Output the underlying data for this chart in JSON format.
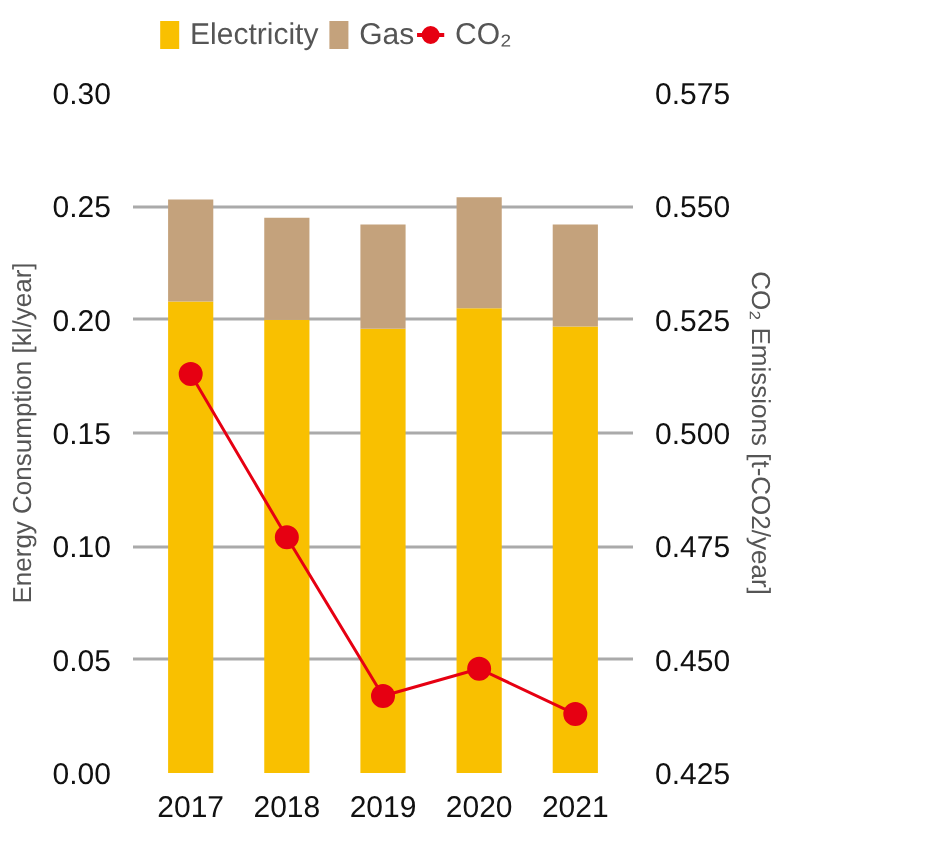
{
  "chart_data": {
    "type": "bar",
    "stacked": true,
    "categories": [
      "2017",
      "2018",
      "2019",
      "2020",
      "2021"
    ],
    "series": [
      {
        "name": "Electricity",
        "color": "#f9c000",
        "values": [
          0.208,
          0.2,
          0.196,
          0.205,
          0.197
        ]
      },
      {
        "name": "Gas",
        "color": "#c4a27c",
        "values": [
          0.045,
          0.045,
          0.046,
          0.049,
          0.045
        ]
      },
      {
        "name": "CO₂",
        "type": "line",
        "axis": "y2",
        "color": "#e60012",
        "marker": "circle",
        "values": [
          0.513,
          0.477,
          0.442,
          0.448,
          0.438
        ]
      }
    ],
    "ylabel": "Energy Consumption [kl/year]",
    "y2label": "CO₂ Emissions [t-CO2/year]",
    "ylim": [
      0,
      0.3
    ],
    "yticks": [
      {
        "value": 0,
        "label": "0.00"
      },
      {
        "value": 0.05,
        "label": "0.05"
      },
      {
        "value": 0.1,
        "label": "0.10"
      },
      {
        "value": 0.15,
        "label": "0.15"
      },
      {
        "value": 0.2,
        "label": "0.20"
      },
      {
        "value": 0.25,
        "label": "0.25"
      },
      {
        "value": 0.3,
        "label": "0.30"
      }
    ],
    "y2lim": [
      0.425,
      0.575
    ],
    "y2ticks": [
      0.425,
      {
        "value": 0.45,
        "label": "0.450"
      },
      0.475,
      {
        "value": 0.5,
        "label": "0.500"
      },
      0.525,
      {
        "value": 0.55,
        "label": "0.550"
      },
      0.575
    ],
    "grid": "y",
    "legend": "top left"
  }
}
